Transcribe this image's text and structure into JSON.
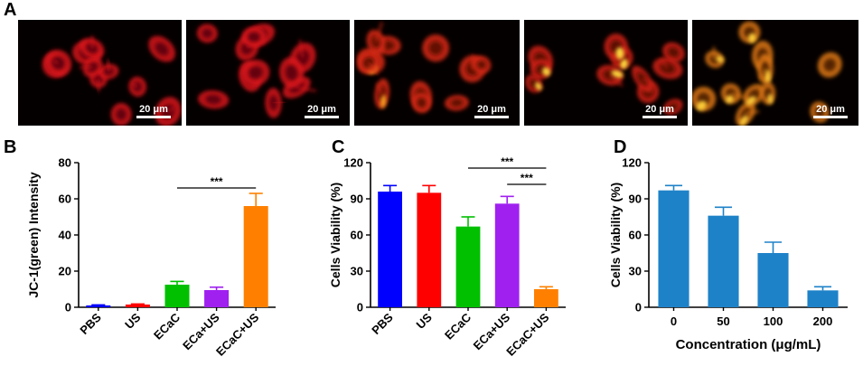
{
  "panels": {
    "a": "A",
    "b": "B",
    "c": "C",
    "d": "D"
  },
  "micrographs": [
    {
      "scale_bar": "20 μm",
      "signal": "red"
    },
    {
      "scale_bar": "20 μm",
      "signal": "red"
    },
    {
      "scale_bar": "20 μm",
      "signal": "red-orange"
    },
    {
      "scale_bar": "20 μm",
      "signal": "red-yellow"
    },
    {
      "scale_bar": "20 μm",
      "signal": "orange-yellow"
    }
  ],
  "chart_data": [
    {
      "panel": "B",
      "type": "bar",
      "categories": [
        "PBS",
        "US",
        "ECaC",
        "ECa+US",
        "ECaC+US"
      ],
      "values": [
        1.0,
        1.5,
        12.5,
        9.5,
        56
      ],
      "errors": [
        0.3,
        0.3,
        1.8,
        1.6,
        7
      ],
      "colors": [
        "#0000ff",
        "#ff0000",
        "#00c000",
        "#a020f0",
        "#ff8000"
      ],
      "ylabel": "JC-1(green) Intensity",
      "xlabel": "",
      "ylim": [
        0,
        80
      ],
      "yticks": [
        0,
        20,
        40,
        60,
        80
      ],
      "significance": [
        {
          "from": 2,
          "to": 4,
          "label": "***"
        }
      ]
    },
    {
      "panel": "C",
      "type": "bar",
      "categories": [
        "PBS",
        "US",
        "ECaC",
        "ECa+US",
        "ECaC+US"
      ],
      "values": [
        96,
        95,
        67,
        86,
        15
      ],
      "errors": [
        5,
        6,
        8,
        6,
        2
      ],
      "colors": [
        "#0000ff",
        "#ff0000",
        "#00c000",
        "#a020f0",
        "#ff8000"
      ],
      "ylabel": "Cells Viability (%)",
      "xlabel": "",
      "ylim": [
        0,
        120
      ],
      "yticks": [
        0,
        30,
        60,
        90,
        120
      ],
      "significance": [
        {
          "from": 2,
          "to": 4,
          "label": "***"
        },
        {
          "from": 3,
          "to": 4,
          "label": "***"
        }
      ]
    },
    {
      "panel": "D",
      "type": "bar",
      "categories": [
        "0",
        "50",
        "100",
        "200"
      ],
      "values": [
        97,
        76,
        45,
        14
      ],
      "errors": [
        4,
        7,
        9,
        3
      ],
      "colors": [
        "#1e82c8",
        "#1e82c8",
        "#1e82c8",
        "#1e82c8"
      ],
      "ylabel": "Cells Viability (%)",
      "xlabel": "Concentration (μg/mL)",
      "ylim": [
        0,
        120
      ],
      "yticks": [
        0,
        30,
        60,
        90,
        120
      ],
      "significance": []
    }
  ]
}
